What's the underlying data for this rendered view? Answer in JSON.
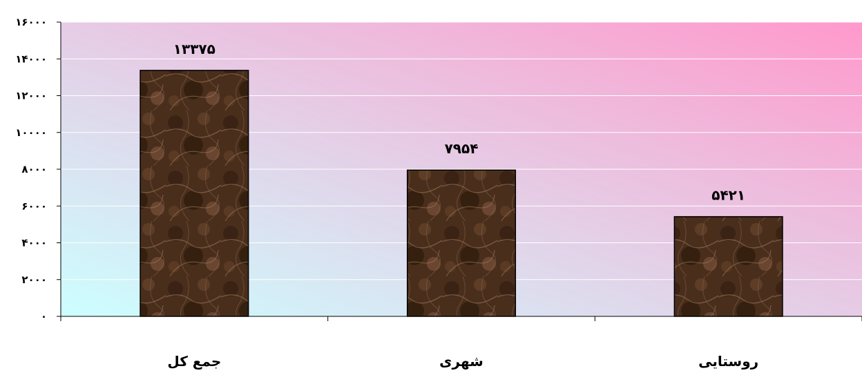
{
  "chart_data": {
    "type": "bar",
    "categories": [
      "جمع کل",
      "شهری",
      "روستایی"
    ],
    "values": [
      13375,
      7954,
      5421
    ],
    "data_labels": [
      "۱۳۳۷۵",
      "۷۹۵۴",
      "۵۴۲۱"
    ],
    "ylim": [
      0,
      16000
    ],
    "yticks": [
      0,
      2000,
      4000,
      6000,
      8000,
      10000,
      12000,
      14000,
      16000
    ],
    "ytick_labels": [
      "۰",
      "۲۰۰۰",
      "۴۰۰۰",
      "۶۰۰۰",
      "۸۰۰۰",
      "۱۰۰۰۰",
      "۱۲۰۰۰",
      "۱۴۰۰۰",
      "۱۶۰۰۰"
    ],
    "grid": true,
    "legend": "none",
    "colors": {
      "bar_fill": "#4a2e1c",
      "bar_edge": "#000000",
      "plot_bg_start": "#ccffff",
      "plot_bg_end": "#ff99cc",
      "gridline": "#ffffff"
    }
  }
}
